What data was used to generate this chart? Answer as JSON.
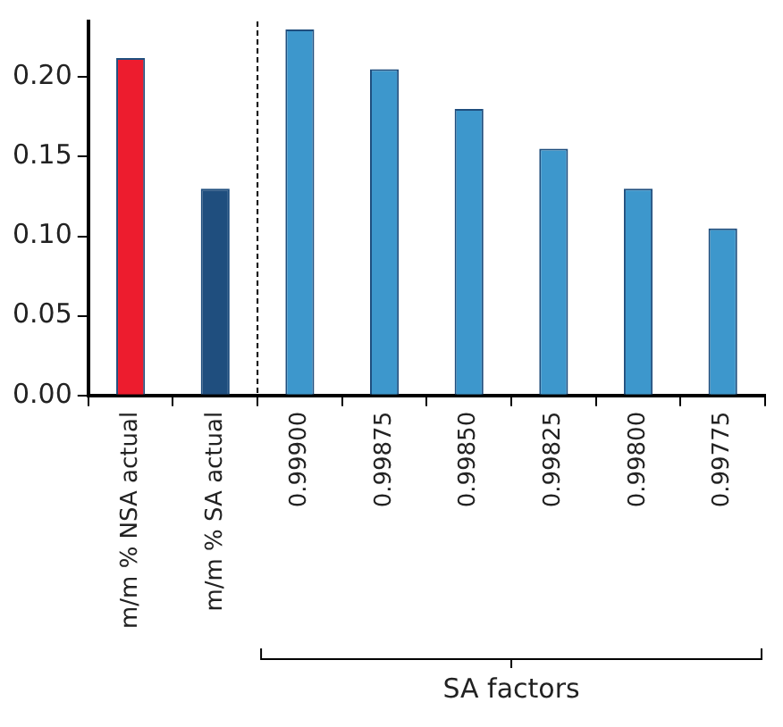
{
  "chart_data": {
    "type": "bar",
    "categories": [
      "m/m % NSA actual",
      "m/m % SA actual",
      "0.99900",
      "0.99875",
      "0.99850",
      "0.99825",
      "0.99800",
      "0.99775"
    ],
    "values": [
      0.212,
      0.13,
      0.23,
      0.205,
      0.18,
      0.155,
      0.13,
      0.105
    ],
    "colors": [
      "#ed1c2e",
      "#1f4e7e",
      "#3d97cc",
      "#3d97cc",
      "#3d97cc",
      "#3d97cc",
      "#3d97cc",
      "#3d97cc"
    ],
    "ylim": [
      0,
      0.235
    ],
    "yticks": [
      {
        "value": 0,
        "label": "0.00"
      },
      {
        "value": 0.05,
        "label": "0.05"
      },
      {
        "value": 0.1,
        "label": "0.10"
      },
      {
        "value": 0.15,
        "label": "0.15"
      },
      {
        "value": 0.2,
        "label": "0.20"
      }
    ],
    "grid": false,
    "legend": false,
    "annotations": [
      "SA factors"
    ]
  }
}
